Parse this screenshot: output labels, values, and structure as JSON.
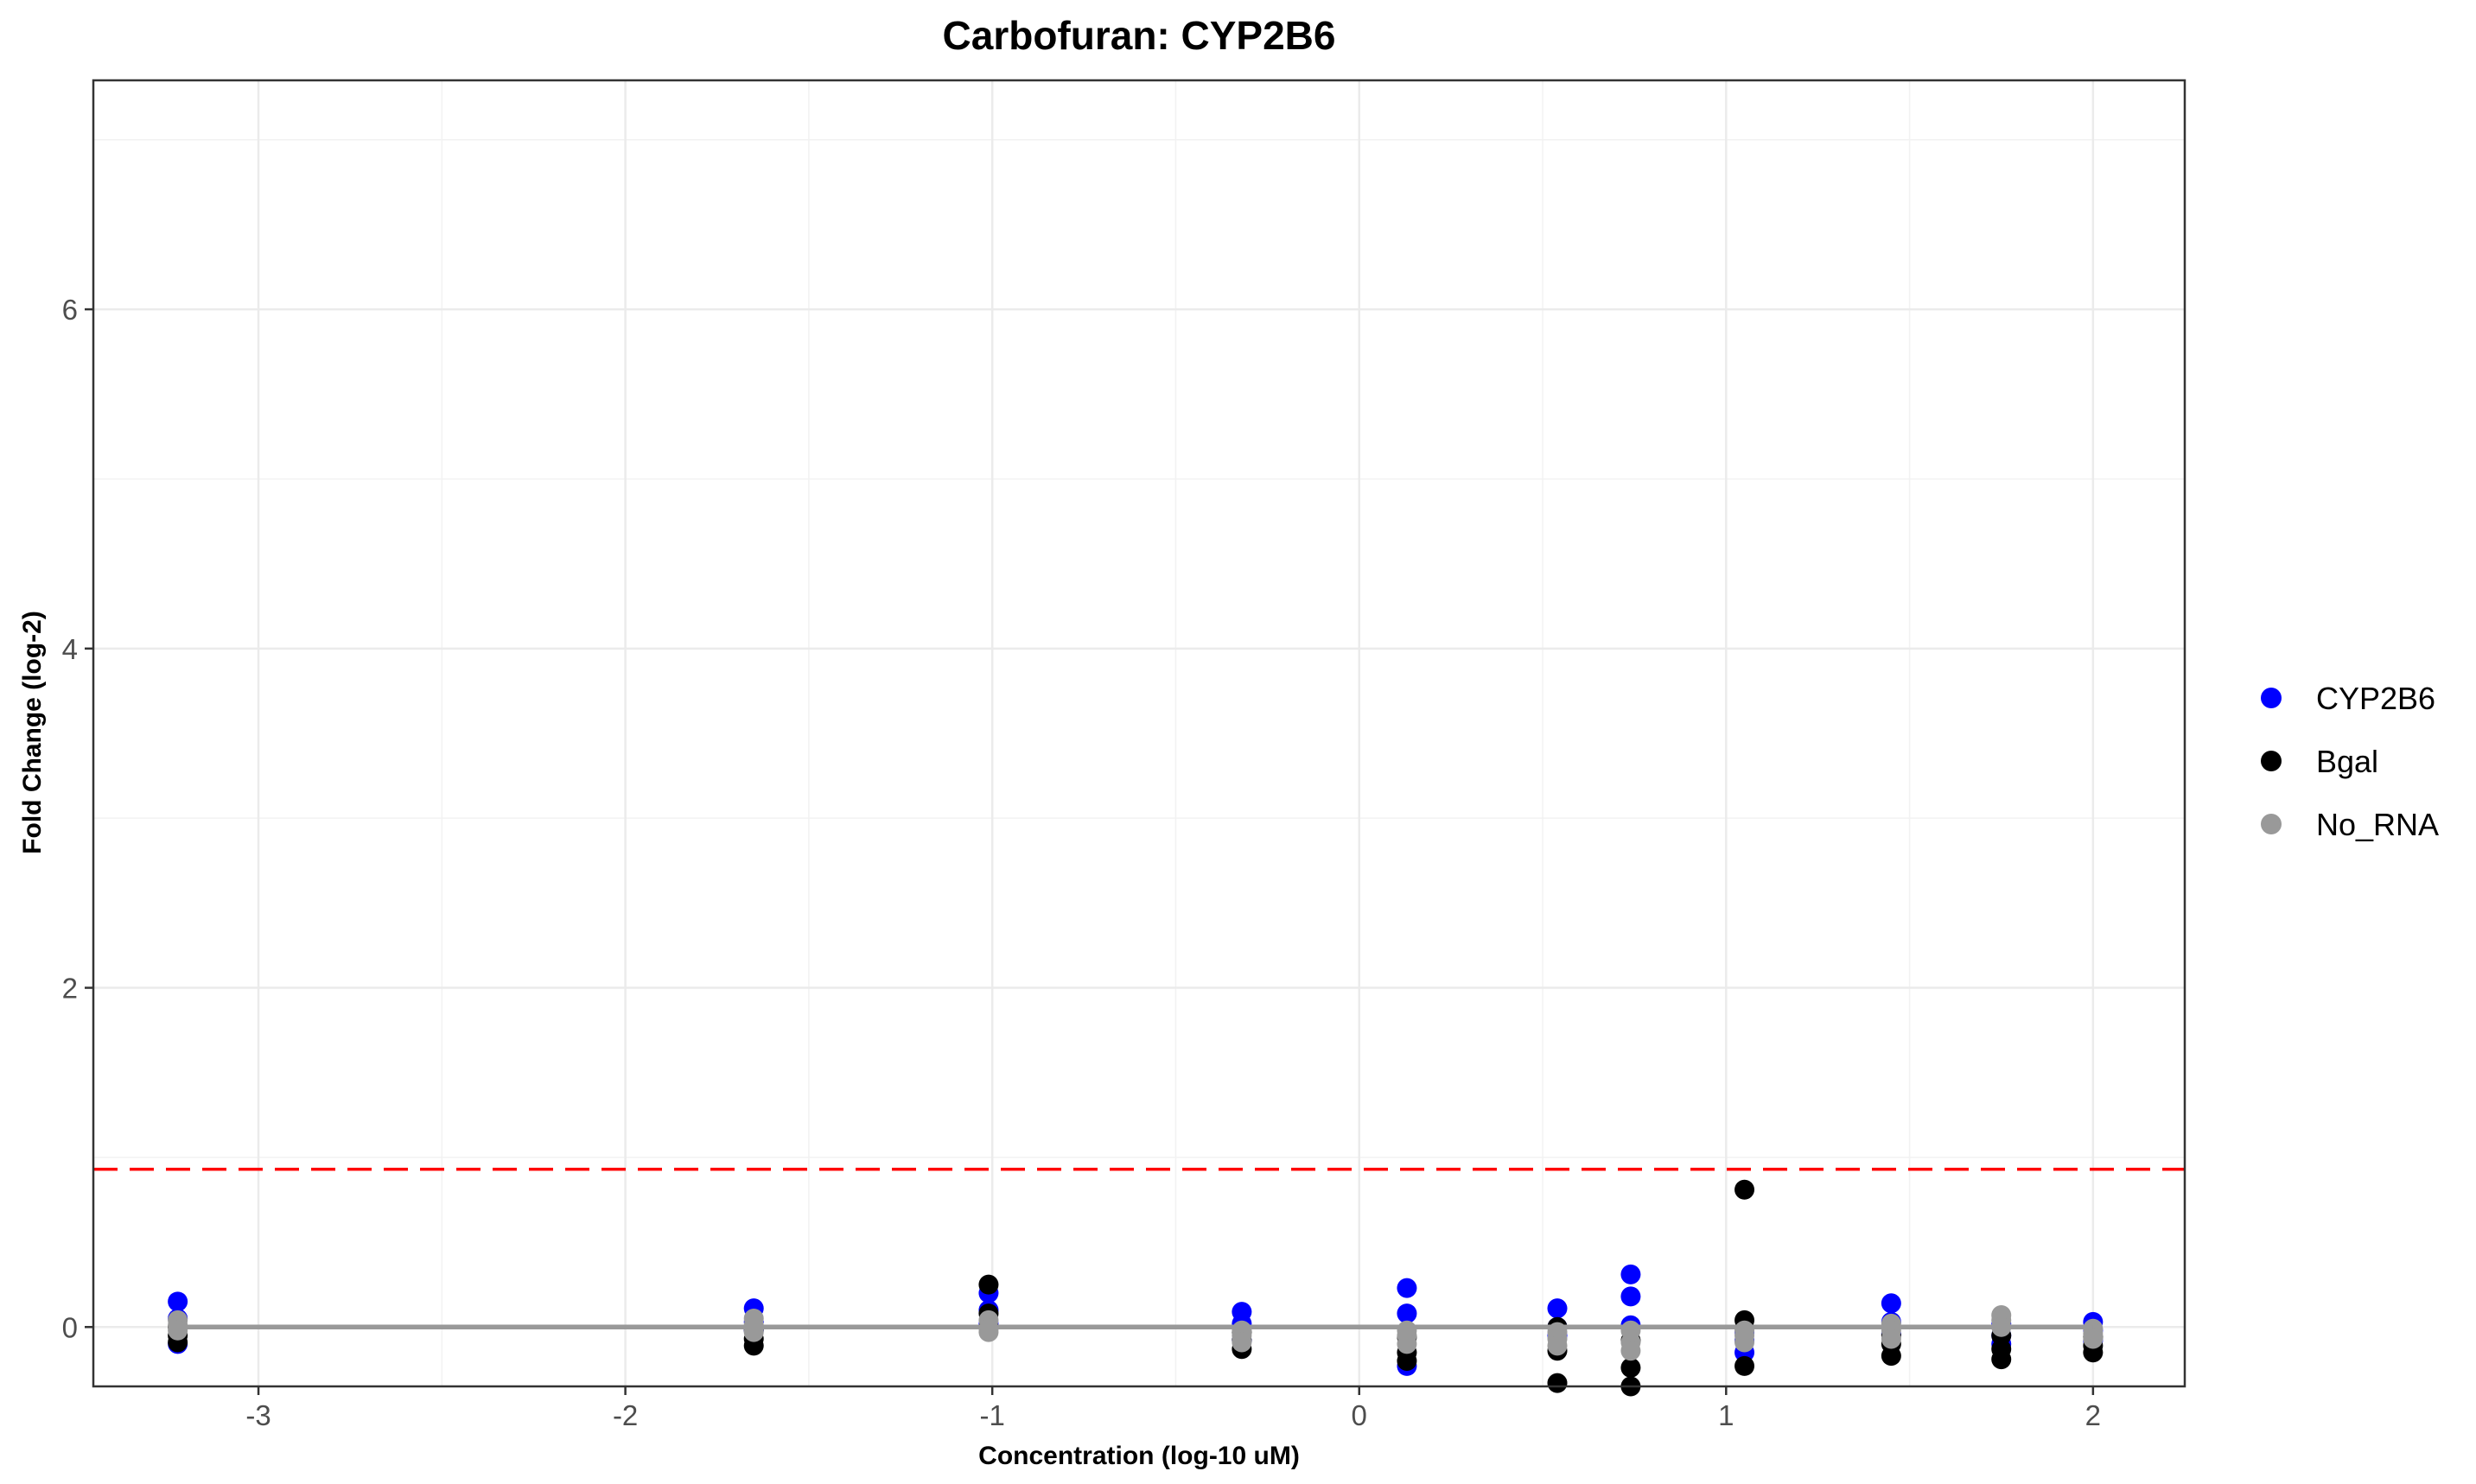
{
  "chart_data": {
    "type": "scatter",
    "title": "Carbofuran: CYP2B6",
    "xlabel": "Concentration (log-10 uM)",
    "ylabel": "Fold Change (log-2)",
    "xlim": [
      -3.45,
      2.25
    ],
    "ylim": [
      -0.35,
      7.35
    ],
    "x_ticks": [
      -3,
      -2,
      -1,
      0,
      1,
      2
    ],
    "y_ticks": [
      0,
      2,
      4,
      6
    ],
    "grid": true,
    "legend_position": "right",
    "threshold_line": {
      "y": 0.93,
      "color": "#ff0000",
      "style": "dashed"
    },
    "baseline_line": {
      "y": 0,
      "color": "#999999"
    },
    "series": [
      {
        "name": "CYP2B6",
        "color": "#0000ff",
        "points": [
          {
            "x": -3.22,
            "y": 0.15
          },
          {
            "x": -3.22,
            "y": 0.05
          },
          {
            "x": -3.22,
            "y": -0.1
          },
          {
            "x": -1.65,
            "y": 0.11
          },
          {
            "x": -1.65,
            "y": 0.03
          },
          {
            "x": -1.65,
            "y": -0.02
          },
          {
            "x": -1.01,
            "y": 0.2
          },
          {
            "x": -1.01,
            "y": 0.1
          },
          {
            "x": -1.01,
            "y": 0.02
          },
          {
            "x": -0.32,
            "y": 0.09
          },
          {
            "x": -0.32,
            "y": 0.02
          },
          {
            "x": -0.32,
            "y": -0.08
          },
          {
            "x": 0.13,
            "y": 0.23
          },
          {
            "x": 0.13,
            "y": 0.08
          },
          {
            "x": 0.13,
            "y": -0.23
          },
          {
            "x": 0.54,
            "y": 0.11
          },
          {
            "x": 0.54,
            "y": 0.0
          },
          {
            "x": 0.54,
            "y": -0.05
          },
          {
            "x": 0.74,
            "y": 0.31
          },
          {
            "x": 0.74,
            "y": 0.18
          },
          {
            "x": 0.74,
            "y": 0.01
          },
          {
            "x": 1.05,
            "y": -0.03
          },
          {
            "x": 1.05,
            "y": -0.08
          },
          {
            "x": 1.05,
            "y": -0.15
          },
          {
            "x": 1.45,
            "y": 0.14
          },
          {
            "x": 1.45,
            "y": 0.03
          },
          {
            "x": 1.45,
            "y": -0.04
          },
          {
            "x": 1.75,
            "y": 0.02
          },
          {
            "x": 1.75,
            "y": -0.05
          },
          {
            "x": 1.75,
            "y": -0.1
          },
          {
            "x": 2.0,
            "y": 0.03
          },
          {
            "x": 2.0,
            "y": -0.02
          },
          {
            "x": 2.0,
            "y": -0.08
          }
        ]
      },
      {
        "name": "Bgal",
        "color": "#000000",
        "points": [
          {
            "x": -3.22,
            "y": 0.0
          },
          {
            "x": -3.22,
            "y": -0.05
          },
          {
            "x": -3.22,
            "y": -0.09
          },
          {
            "x": -1.65,
            "y": -0.02
          },
          {
            "x": -1.65,
            "y": -0.07
          },
          {
            "x": -1.65,
            "y": -0.11
          },
          {
            "x": -1.01,
            "y": 0.25
          },
          {
            "x": -1.01,
            "y": 0.08
          },
          {
            "x": -1.01,
            "y": 0.0
          },
          {
            "x": -0.32,
            "y": -0.03
          },
          {
            "x": -0.32,
            "y": -0.08
          },
          {
            "x": -0.32,
            "y": -0.13
          },
          {
            "x": 0.13,
            "y": -0.06
          },
          {
            "x": 0.13,
            "y": -0.15
          },
          {
            "x": 0.13,
            "y": -0.2
          },
          {
            "x": 0.54,
            "y": 0.0
          },
          {
            "x": 0.54,
            "y": -0.14
          },
          {
            "x": 0.54,
            "y": -0.33
          },
          {
            "x": 0.74,
            "y": -0.08
          },
          {
            "x": 0.74,
            "y": -0.24
          },
          {
            "x": 0.74,
            "y": -0.35
          },
          {
            "x": 1.05,
            "y": 0.81
          },
          {
            "x": 1.05,
            "y": 0.04
          },
          {
            "x": 1.05,
            "y": -0.23
          },
          {
            "x": 1.45,
            "y": -0.05
          },
          {
            "x": 1.45,
            "y": -0.1
          },
          {
            "x": 1.45,
            "y": -0.17
          },
          {
            "x": 1.75,
            "y": -0.05
          },
          {
            "x": 1.75,
            "y": -0.13
          },
          {
            "x": 1.75,
            "y": -0.19
          },
          {
            "x": 2.0,
            "y": -0.06
          },
          {
            "x": 2.0,
            "y": -0.11
          },
          {
            "x": 2.0,
            "y": -0.15
          }
        ]
      },
      {
        "name": "No_RNA",
        "color": "#999999",
        "points": [
          {
            "x": -3.22,
            "y": 0.04
          },
          {
            "x": -3.22,
            "y": 0.01
          },
          {
            "x": -3.22,
            "y": -0.02
          },
          {
            "x": -1.65,
            "y": 0.05
          },
          {
            "x": -1.65,
            "y": 0.01
          },
          {
            "x": -1.65,
            "y": -0.03
          },
          {
            "x": -1.01,
            "y": 0.04
          },
          {
            "x": -1.01,
            "y": -0.01
          },
          {
            "x": -1.01,
            "y": -0.03
          },
          {
            "x": -0.32,
            "y": -0.02
          },
          {
            "x": -0.32,
            "y": -0.05
          },
          {
            "x": -0.32,
            "y": -0.09
          },
          {
            "x": 0.13,
            "y": -0.02
          },
          {
            "x": 0.13,
            "y": -0.05
          },
          {
            "x": 0.13,
            "y": -0.1
          },
          {
            "x": 0.54,
            "y": -0.03
          },
          {
            "x": 0.54,
            "y": -0.07
          },
          {
            "x": 0.54,
            "y": -0.11
          },
          {
            "x": 0.74,
            "y": -0.02
          },
          {
            "x": 0.74,
            "y": -0.09
          },
          {
            "x": 0.74,
            "y": -0.14
          },
          {
            "x": 1.05,
            "y": -0.02
          },
          {
            "x": 1.05,
            "y": -0.05
          },
          {
            "x": 1.05,
            "y": -0.09
          },
          {
            "x": 1.45,
            "y": 0.02
          },
          {
            "x": 1.45,
            "y": -0.02
          },
          {
            "x": 1.45,
            "y": -0.07
          },
          {
            "x": 1.75,
            "y": 0.07
          },
          {
            "x": 1.75,
            "y": 0.04
          },
          {
            "x": 1.75,
            "y": 0.0
          },
          {
            "x": 2.0,
            "y": -0.01
          },
          {
            "x": 2.0,
            "y": -0.04
          },
          {
            "x": 2.0,
            "y": -0.07
          }
        ]
      }
    ]
  }
}
